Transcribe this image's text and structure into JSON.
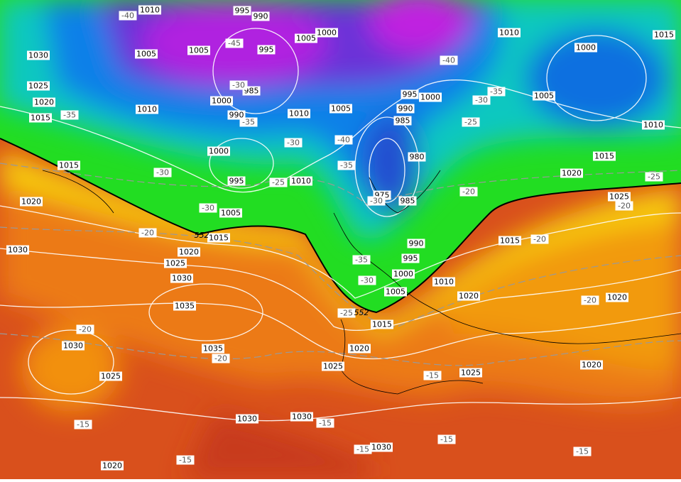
{
  "map": {
    "pressure_labels": [
      "1010",
      "995",
      "990",
      "1000",
      "1005",
      "1010",
      "1015",
      "1030",
      "1005",
      "1005",
      "995",
      "1000",
      "1025",
      "985",
      "1000",
      "995",
      "1000",
      "1005",
      "1020",
      "1010",
      "990",
      "1010",
      "1005",
      "990",
      "985",
      "1015",
      "1010",
      "1000",
      "980",
      "1015",
      "1015",
      "1020",
      "995",
      "1010",
      "975",
      "985",
      "1025",
      "1020",
      "1005",
      "1015",
      "1015",
      "990",
      "1030",
      "1020",
      "995",
      "1025",
      "1000",
      "1030",
      "1010",
      "1005",
      "1020",
      "1020",
      "1035",
      "1015",
      "1030",
      "1035",
      "1020",
      "1020",
      "1025",
      "1025",
      "1025",
      "1030",
      "1030",
      "1030",
      "1020"
    ],
    "temperature_labels": [
      "-40",
      "-45",
      "-40",
      "-35",
      "-30",
      "-35",
      "-30",
      "-35",
      "-25",
      "-30",
      "-40",
      "-35",
      "-30",
      "-25",
      "-25",
      "-20",
      "-30",
      "-20",
      "-30",
      "-20",
      "-20",
      "-35",
      "-30",
      "-20",
      "-25",
      "-20",
      "-20",
      "-15",
      "-15",
      "-15",
      "-15",
      "-15",
      "-15",
      "-15"
    ],
    "thickness_labels": [
      "552",
      "552"
    ]
  }
}
